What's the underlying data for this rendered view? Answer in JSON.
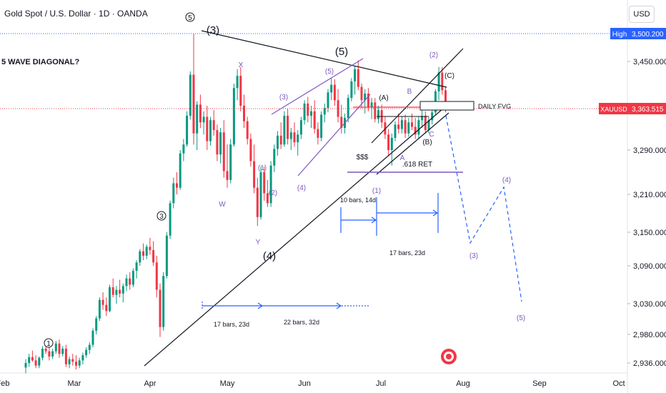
{
  "header": {
    "title": "Gold Spot / U.S. Dollar · 1D · OANDA",
    "currency_button": "USD"
  },
  "colors": {
    "up": "#089981",
    "down": "#f23645",
    "high_line": "#2962ff",
    "price_line": "#f23645",
    "purple": "#7e57c2",
    "blue": "#2962ff",
    "black": "#131722"
  },
  "price_badges": {
    "high_label": "High",
    "high_value": "3,500.200",
    "symbol": "XAUUSD",
    "last_value": "3,363.515"
  },
  "chart_data": {
    "type": "candlestick",
    "x_tick_labels": [
      "Feb",
      "Mar",
      "Apr",
      "May",
      "Jun",
      "Jul",
      "Aug",
      "Sep",
      "Oct"
    ],
    "y_tick_labels": [
      "3,450.000",
      "3,290.000",
      "3,210.000",
      "3,150.000",
      "3,090.000",
      "3,030.000",
      "2,980.000",
      "2,936.000"
    ],
    "ylim": [
      2925,
      3520
    ],
    "high": 3500.2,
    "last": 3363.515,
    "candles": [
      [
        2929,
        2942,
        2920,
        2936
      ],
      [
        2936,
        2950,
        2930,
        2945
      ],
      [
        2945,
        2955,
        2938,
        2940
      ],
      [
        2940,
        2948,
        2928,
        2932
      ],
      [
        2932,
        2946,
        2928,
        2944
      ],
      [
        2944,
        2962,
        2940,
        2958
      ],
      [
        2958,
        2966,
        2950,
        2954
      ],
      [
        2954,
        2960,
        2940,
        2946
      ],
      [
        2946,
        2958,
        2942,
        2954
      ],
      [
        2954,
        2970,
        2950,
        2966
      ],
      [
        2966,
        2972,
        2944,
        2950
      ],
      [
        2950,
        2962,
        2946,
        2958
      ],
      [
        2958,
        2964,
        2930,
        2934
      ],
      [
        2934,
        2946,
        2928,
        2942
      ],
      [
        2942,
        2950,
        2932,
        2938
      ],
      [
        2938,
        2948,
        2926,
        2932
      ],
      [
        2932,
        2944,
        2928,
        2940
      ],
      [
        2940,
        2952,
        2934,
        2948
      ],
      [
        2948,
        2960,
        2944,
        2956
      ],
      [
        2956,
        2968,
        2950,
        2964
      ],
      [
        2964,
        2990,
        2960,
        2986
      ],
      [
        2986,
        3010,
        2980,
        3006
      ],
      [
        3006,
        3040,
        3002,
        3036
      ],
      [
        3036,
        3048,
        3020,
        3028
      ],
      [
        3028,
        3040,
        3010,
        3018
      ],
      [
        3018,
        3060,
        3016,
        3056
      ],
      [
        3056,
        3070,
        3040,
        3044
      ],
      [
        3044,
        3058,
        3030,
        3052
      ],
      [
        3052,
        3068,
        3040,
        3046
      ],
      [
        3046,
        3062,
        3032,
        3058
      ],
      [
        3058,
        3076,
        3050,
        3070
      ],
      [
        3070,
        3080,
        3052,
        3060
      ],
      [
        3060,
        3086,
        3056,
        3082
      ],
      [
        3082,
        3100,
        3070,
        3096
      ],
      [
        3096,
        3120,
        3090,
        3116
      ],
      [
        3116,
        3130,
        3100,
        3108
      ],
      [
        3108,
        3128,
        3102,
        3124
      ],
      [
        3124,
        3140,
        3110,
        3118
      ],
      [
        3118,
        3134,
        3090,
        3096
      ],
      [
        3096,
        3108,
        3040,
        3052
      ],
      [
        3052,
        3062,
        2976,
        2992
      ],
      [
        2992,
        3080,
        2986,
        3074
      ],
      [
        3074,
        3150,
        3070,
        3144
      ],
      [
        3144,
        3200,
        3138,
        3196
      ],
      [
        3196,
        3240,
        3188,
        3230
      ],
      [
        3230,
        3250,
        3210,
        3222
      ],
      [
        3222,
        3290,
        3218,
        3284
      ],
      [
        3284,
        3310,
        3270,
        3300
      ],
      [
        3300,
        3360,
        3296,
        3352
      ],
      [
        3352,
        3432,
        3345,
        3426
      ],
      [
        3426,
        3500,
        3300,
        3320
      ],
      [
        3320,
        3378,
        3290,
        3372
      ],
      [
        3372,
        3390,
        3330,
        3340
      ],
      [
        3340,
        3360,
        3318,
        3350
      ],
      [
        3350,
        3370,
        3290,
        3306
      ],
      [
        3306,
        3350,
        3298,
        3344
      ],
      [
        3344,
        3362,
        3316,
        3326
      ],
      [
        3326,
        3336,
        3270,
        3282
      ],
      [
        3282,
        3330,
        3266,
        3322
      ],
      [
        3322,
        3344,
        3240,
        3252
      ],
      [
        3252,
        3300,
        3222,
        3236
      ],
      [
        3236,
        3310,
        3230,
        3300
      ],
      [
        3300,
        3410,
        3296,
        3402
      ],
      [
        3402,
        3436,
        3380,
        3424
      ],
      [
        3424,
        3440,
        3360,
        3370
      ],
      [
        3370,
        3390,
        3330,
        3342
      ],
      [
        3342,
        3350,
        3300,
        3310
      ],
      [
        3310,
        3320,
        3260,
        3270
      ],
      [
        3270,
        3300,
        3212,
        3222
      ],
      [
        3222,
        3240,
        3160,
        3174
      ],
      [
        3174,
        3260,
        3170,
        3250
      ],
      [
        3250,
        3260,
        3200,
        3212
      ],
      [
        3212,
        3236,
        3190,
        3196
      ],
      [
        3196,
        3270,
        3190,
        3262
      ],
      [
        3262,
        3300,
        3250,
        3292
      ],
      [
        3292,
        3324,
        3280,
        3316
      ],
      [
        3316,
        3340,
        3292,
        3300
      ],
      [
        3300,
        3360,
        3296,
        3352
      ],
      [
        3352,
        3364,
        3300,
        3310
      ],
      [
        3310,
        3330,
        3290,
        3322
      ],
      [
        3322,
        3340,
        3296,
        3304
      ],
      [
        3304,
        3326,
        3280,
        3318
      ],
      [
        3318,
        3350,
        3310,
        3344
      ],
      [
        3344,
        3380,
        3336,
        3374
      ],
      [
        3374,
        3386,
        3340,
        3352
      ],
      [
        3352,
        3370,
        3330,
        3360
      ],
      [
        3360,
        3380,
        3320,
        3328
      ],
      [
        3328,
        3340,
        3300,
        3312
      ],
      [
        3312,
        3360,
        3306,
        3354
      ],
      [
        3354,
        3374,
        3340,
        3366
      ],
      [
        3366,
        3400,
        3358,
        3394
      ],
      [
        3394,
        3420,
        3380,
        3408
      ],
      [
        3408,
        3418,
        3370,
        3380
      ],
      [
        3380,
        3400,
        3340,
        3350
      ],
      [
        3350,
        3372,
        3320,
        3330
      ],
      [
        3330,
        3356,
        3320,
        3348
      ],
      [
        3348,
        3390,
        3340,
        3384
      ],
      [
        3384,
        3420,
        3378,
        3414
      ],
      [
        3414,
        3442,
        3390,
        3436
      ],
      [
        3436,
        3452,
        3398,
        3404
      ],
      [
        3404,
        3410,
        3366,
        3380
      ],
      [
        3380,
        3400,
        3356,
        3392
      ],
      [
        3392,
        3402,
        3360,
        3368
      ],
      [
        3368,
        3384,
        3346,
        3376
      ],
      [
        3376,
        3384,
        3340,
        3346
      ],
      [
        3346,
        3370,
        3338,
        3362
      ],
      [
        3362,
        3372,
        3330,
        3340
      ],
      [
        3340,
        3350,
        3310,
        3318
      ],
      [
        3318,
        3328,
        3280,
        3290
      ],
      [
        3290,
        3320,
        3262,
        3312
      ],
      [
        3312,
        3342,
        3306,
        3336
      ],
      [
        3336,
        3356,
        3320,
        3328
      ],
      [
        3328,
        3350,
        3320,
        3344
      ],
      [
        3344,
        3354,
        3312,
        3320
      ],
      [
        3320,
        3348,
        3314,
        3340
      ],
      [
        3340,
        3356,
        3326,
        3332
      ],
      [
        3332,
        3348,
        3310,
        3318
      ],
      [
        3318,
        3350,
        3312,
        3344
      ],
      [
        3344,
        3362,
        3330,
        3352
      ],
      [
        3352,
        3360,
        3320,
        3326
      ],
      [
        3326,
        3350,
        3320,
        3344
      ],
      [
        3344,
        3366,
        3336,
        3358
      ],
      [
        3358,
        3400,
        3354,
        3396
      ],
      [
        3396,
        3440,
        3380,
        3430
      ],
      [
        3430,
        3440,
        3390,
        3398
      ],
      [
        3398,
        3404,
        3358,
        3364
      ]
    ]
  },
  "annotations": {
    "title_text": "5  WAVE DIAGONAL?",
    "circled_1": "1",
    "circled_3": "3",
    "circled_5": "5",
    "w3": "(3)",
    "w5": "(5)",
    "w4": "(4)",
    "p5": "(5)",
    "p3a": "(3)",
    "p4": "(4)",
    "p1": "(1)",
    "p2": "(2)",
    "x": "X",
    "w": "W",
    "y": "Y",
    "p2b": "(2)",
    "pa": "(A)",
    "pb_letter": "B",
    "pb": "(B)",
    "pc_letter": "C",
    "pc": "(C)",
    "pa_letter": "A",
    "sss": "$$$",
    "ret": ".618 RET",
    "fvg": "DAILY FVG",
    "pp1": "(1)",
    "pp3": "(3)",
    "pp4": "(4)",
    "pp5": "(5)",
    "bars1": "10 bars, 14d",
    "bars2": "17 bars, 23d",
    "bars3": "17 bars, 23d",
    "bars4": "22 bars, 32d"
  }
}
